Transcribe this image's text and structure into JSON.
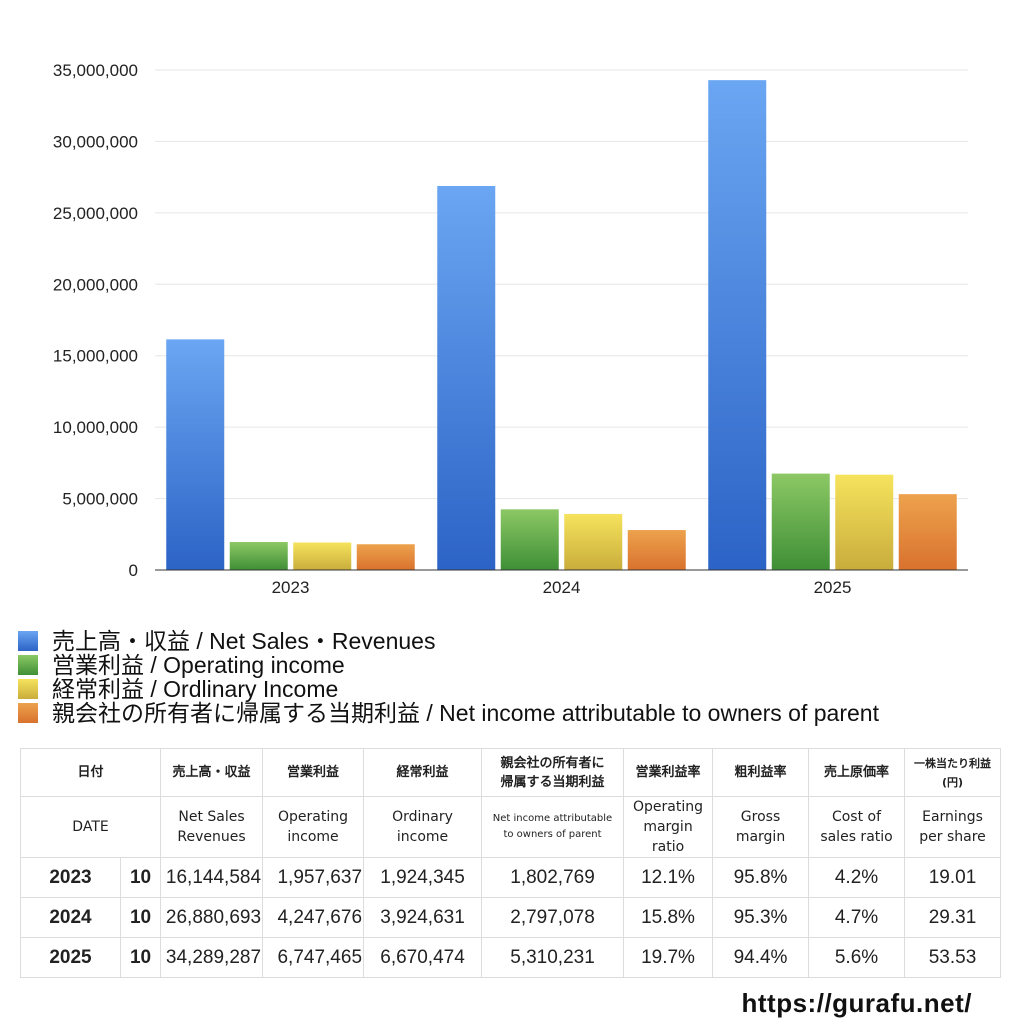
{
  "chart_data": {
    "type": "bar",
    "categories": [
      "2023",
      "2024",
      "2025"
    ],
    "series": [
      {
        "name": "売上高・収益 / Net Sales・Revenues",
        "color": "#3f7fe0",
        "color_top": "#6aa6f2",
        "color_bottom": "#2c63c6",
        "values": [
          16144584,
          26880693,
          34289287
        ]
      },
      {
        "name": "営業利益 / Operating income",
        "color": "#55a646",
        "color_top": "#8cc865",
        "color_bottom": "#3f8f36",
        "values": [
          1957637,
          4247676,
          6747465
        ]
      },
      {
        "name": "経常利益 / Ordlinary Income",
        "color": "#e8cf45",
        "color_top": "#f6e35c",
        "color_bottom": "#c9ad3c",
        "values": [
          1924345,
          3924631,
          6670474
        ]
      },
      {
        "name": "親会社の所有者に帰属する当期利益 / Net income attributable to owners of parent",
        "color": "#e08a36",
        "color_top": "#eda24d",
        "color_bottom": "#d9722e",
        "values": [
          1802769,
          2797078,
          5310231
        ]
      }
    ],
    "y_ticks": [
      "0",
      "5,000,000",
      "10,000,000",
      "15,000,000",
      "20,000,000",
      "25,000,000",
      "30,000,000",
      "35,000,000"
    ],
    "ylim": [
      0,
      35000000
    ],
    "grid": true,
    "legend_position": "below"
  },
  "table": {
    "header_jp": [
      "日付",
      "売上高・収益",
      "営業利益",
      "経常利益",
      "親会社の所有者に",
      "帰属する当期利益",
      "営業利益率",
      "粗利益率",
      "売上原価率",
      "一株当たり利益",
      "(円)"
    ],
    "header_en": {
      "date": "DATE",
      "sales": [
        "Net Sales",
        "Revenues"
      ],
      "operating": [
        "Operating",
        "income"
      ],
      "ordinary": [
        "Ordinary",
        "income"
      ],
      "net": [
        "Net income attributable",
        "to owners of parent"
      ],
      "op_margin": [
        "Operating",
        "margin",
        "ratio"
      ],
      "gross": [
        "Gross",
        "margin"
      ],
      "cost": [
        "Cost of",
        "sales ratio"
      ],
      "eps": [
        "Earnings",
        "per share"
      ]
    },
    "rows": [
      {
        "year": "2023",
        "month": "10",
        "sales": "16,144,584",
        "operating": "1,957,637",
        "ordinary": "1,924,345",
        "net": "1,802,769",
        "op_margin": "12.1%",
        "gross": "95.8%",
        "cost": "4.2%",
        "eps": "19.01"
      },
      {
        "year": "2024",
        "month": "10",
        "sales": "26,880,693",
        "operating": "4,247,676",
        "ordinary": "3,924,631",
        "net": "2,797,078",
        "op_margin": "15.8%",
        "gross": "95.3%",
        "cost": "4.7%",
        "eps": "29.31"
      },
      {
        "year": "2025",
        "month": "10",
        "sales": "34,289,287",
        "operating": "6,747,465",
        "ordinary": "6,670,474",
        "net": "5,310,231",
        "op_margin": "19.7%",
        "gross": "94.4%",
        "cost": "5.6%",
        "eps": "53.53"
      }
    ]
  },
  "footer": {
    "url": "https://gurafu.net/"
  }
}
